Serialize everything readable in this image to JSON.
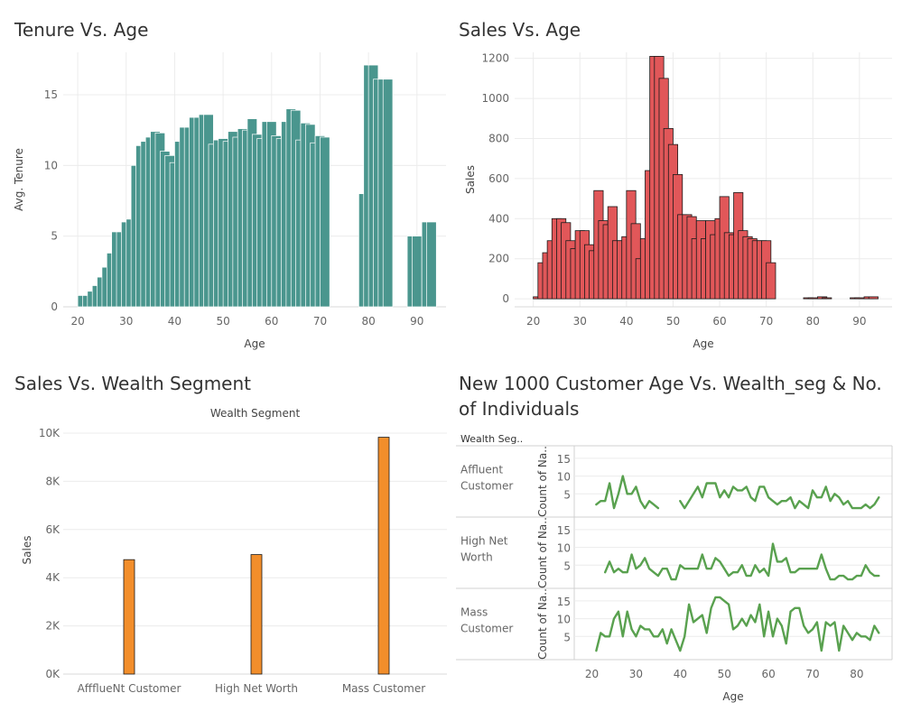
{
  "chart_data": [
    {
      "id": "tenure_age",
      "type": "bar",
      "title": "Tenure Vs. Age",
      "xlabel": "Age",
      "ylabel": "Avg. Tenure",
      "xticks": [
        20,
        30,
        40,
        50,
        60,
        70,
        80,
        90
      ],
      "yticks": [
        0,
        5,
        10,
        15
      ],
      "xlim": [
        17,
        96
      ],
      "ylim": [
        0,
        18
      ],
      "color": "#4a968e",
      "x": [
        21,
        22,
        23,
        24,
        25,
        26,
        27,
        28,
        29,
        30,
        31,
        32,
        33,
        34,
        35,
        36,
        37,
        38,
        39,
        40,
        41,
        42,
        43,
        44,
        45,
        46,
        47,
        48,
        49,
        50,
        51,
        52,
        53,
        54,
        55,
        56,
        57,
        58,
        59,
        60,
        61,
        62,
        63,
        64,
        65,
        66,
        67,
        68,
        69,
        70,
        71,
        79,
        80,
        81,
        82,
        83,
        84,
        89,
        90,
        92,
        93
      ],
      "values": [
        0.8,
        0.8,
        1.1,
        1.5,
        2.1,
        2.8,
        3.8,
        5.3,
        5.3,
        6.0,
        6.2,
        10.0,
        11.4,
        11.7,
        12.0,
        12.4,
        12.3,
        11.0,
        10.7,
        10.2,
        11.7,
        12.7,
        12.7,
        13.4,
        13.4,
        13.6,
        13.6,
        11.5,
        11.8,
        11.9,
        11.7,
        12.4,
        12.0,
        12.6,
        12.5,
        13.3,
        12.2,
        11.9,
        13.1,
        13.1,
        12.1,
        11.9,
        13.1,
        14.0,
        13.9,
        11.8,
        13.0,
        12.9,
        11.6,
        12.1,
        12.0,
        8.0,
        17.1,
        17.1,
        16.1,
        16.1,
        16.1,
        5.0,
        5.0,
        6.0,
        6.0
      ]
    },
    {
      "id": "sales_age",
      "type": "bar",
      "title": "Sales Vs. Age",
      "xlabel": "Age",
      "ylabel": "Sales",
      "xticks": [
        20,
        30,
        40,
        50,
        60,
        70,
        80,
        90
      ],
      "yticks": [
        0,
        200,
        400,
        600,
        800,
        1000,
        1200
      ],
      "xlim": [
        16,
        97
      ],
      "ylim": [
        -40,
        1230
      ],
      "color": "#e15759",
      "x": [
        21,
        22,
        23,
        24,
        25,
        26,
        27,
        28,
        29,
        30,
        31,
        32,
        33,
        34,
        35,
        36,
        37,
        38,
        39,
        40,
        41,
        42,
        43,
        44,
        45,
        46,
        47,
        48,
        49,
        50,
        51,
        52,
        53,
        54,
        55,
        56,
        57,
        58,
        59,
        60,
        61,
        62,
        63,
        64,
        65,
        66,
        67,
        68,
        69,
        70,
        71,
        79,
        80,
        82,
        83,
        89,
        90,
        92,
        93
      ],
      "values": [
        10,
        180,
        230,
        290,
        400,
        400,
        380,
        290,
        250,
        340,
        340,
        270,
        240,
        540,
        390,
        370,
        460,
        290,
        290,
        310,
        540,
        375,
        200,
        300,
        640,
        1210,
        1210,
        1100,
        850,
        770,
        620,
        420,
        420,
        410,
        300,
        390,
        300,
        390,
        320,
        400,
        510,
        330,
        320,
        530,
        340,
        310,
        300,
        290,
        290,
        290,
        180,
        5,
        5,
        10,
        5,
        5,
        5,
        10,
        10
      ]
    },
    {
      "id": "sales_wealth",
      "type": "bar",
      "title": "Sales Vs. Wealth Segment",
      "header": "Wealth Segment",
      "ylabel": "Sales",
      "categories": [
        "AffflueNt Customer",
        "High Net Worth",
        "Mass Customer"
      ],
      "values": [
        4750,
        4960,
        9830
      ],
      "yticks": [
        "0K",
        "2K",
        "4K",
        "6K",
        "8K",
        "10K"
      ],
      "ylim": [
        0,
        10300
      ],
      "color": "#f28e2b"
    },
    {
      "id": "new_customer_age",
      "type": "line",
      "title": "New 1000 Customer Age Vs. Wealth_seg & No. of Individuals",
      "row_header": "Wealth Seg..",
      "ylabel": "Count of Na..",
      "xlabel": "Age",
      "xticks": [
        20,
        30,
        40,
        50,
        60,
        70,
        80
      ],
      "xlim": [
        16,
        88
      ],
      "yticks": [
        5,
        10,
        15
      ],
      "color": "#59a14f",
      "x": [
        21,
        22,
        23,
        24,
        25,
        26,
        27,
        28,
        29,
        30,
        31,
        32,
        33,
        34,
        35,
        36,
        37,
        38,
        39,
        40,
        41,
        42,
        43,
        44,
        45,
        46,
        47,
        48,
        49,
        50,
        51,
        52,
        53,
        54,
        55,
        56,
        57,
        58,
        59,
        60,
        61,
        62,
        63,
        64,
        65,
        66,
        67,
        68,
        69,
        70,
        71,
        72,
        73,
        74,
        75,
        76,
        77,
        78,
        79,
        80,
        81,
        82,
        83,
        84,
        85
      ],
      "series": [
        {
          "name": "Affluent Customer",
          "label_lines": [
            "Affluent",
            "Customer"
          ],
          "values": [
            2,
            3,
            3,
            8,
            1,
            5,
            10,
            5,
            5,
            7,
            3,
            1,
            3,
            2,
            1,
            null,
            null,
            null,
            null,
            3,
            1,
            3,
            5,
            7,
            4,
            8,
            8,
            8,
            4,
            6,
            4,
            7,
            6,
            6,
            7,
            4,
            3,
            7,
            7,
            4,
            3,
            2,
            3,
            3,
            4,
            1,
            3,
            2,
            1,
            6,
            4,
            4,
            7,
            3,
            5,
            4,
            2,
            3,
            1,
            1,
            1,
            2,
            1,
            2,
            4
          ]
        },
        {
          "name": "High Net Worth",
          "label_lines": [
            "High Net",
            "Worth"
          ],
          "values": [
            null,
            null,
            3,
            6,
            3,
            4,
            3,
            3,
            8,
            4,
            5,
            7,
            4,
            3,
            2,
            4,
            4,
            1,
            1,
            5,
            4,
            4,
            4,
            4,
            8,
            4,
            4,
            7,
            6,
            4,
            2,
            3,
            3,
            5,
            2,
            2,
            5,
            3,
            4,
            2,
            11,
            6,
            6,
            7,
            3,
            3,
            4,
            4,
            4,
            4,
            4,
            8,
            4,
            1,
            1,
            2,
            2,
            1,
            1,
            2,
            2,
            5,
            3,
            2,
            2
          ]
        },
        {
          "name": "Mass Customer",
          "label_lines": [
            "Mass",
            "Customer"
          ],
          "values": [
            1,
            6,
            5,
            5,
            10,
            12,
            5,
            12,
            7,
            5,
            8,
            7,
            7,
            5,
            5,
            7,
            3,
            7,
            4,
            1,
            5,
            14,
            9,
            10,
            11,
            6,
            13,
            16,
            16,
            15,
            14,
            7,
            8,
            10,
            8,
            11,
            9,
            14,
            5,
            12,
            5,
            10,
            8,
            3,
            12,
            13,
            13,
            8,
            6,
            7,
            9,
            1,
            9,
            8,
            9,
            1,
            8,
            6,
            4,
            6,
            5,
            5,
            4,
            8,
            6
          ]
        }
      ]
    }
  ]
}
